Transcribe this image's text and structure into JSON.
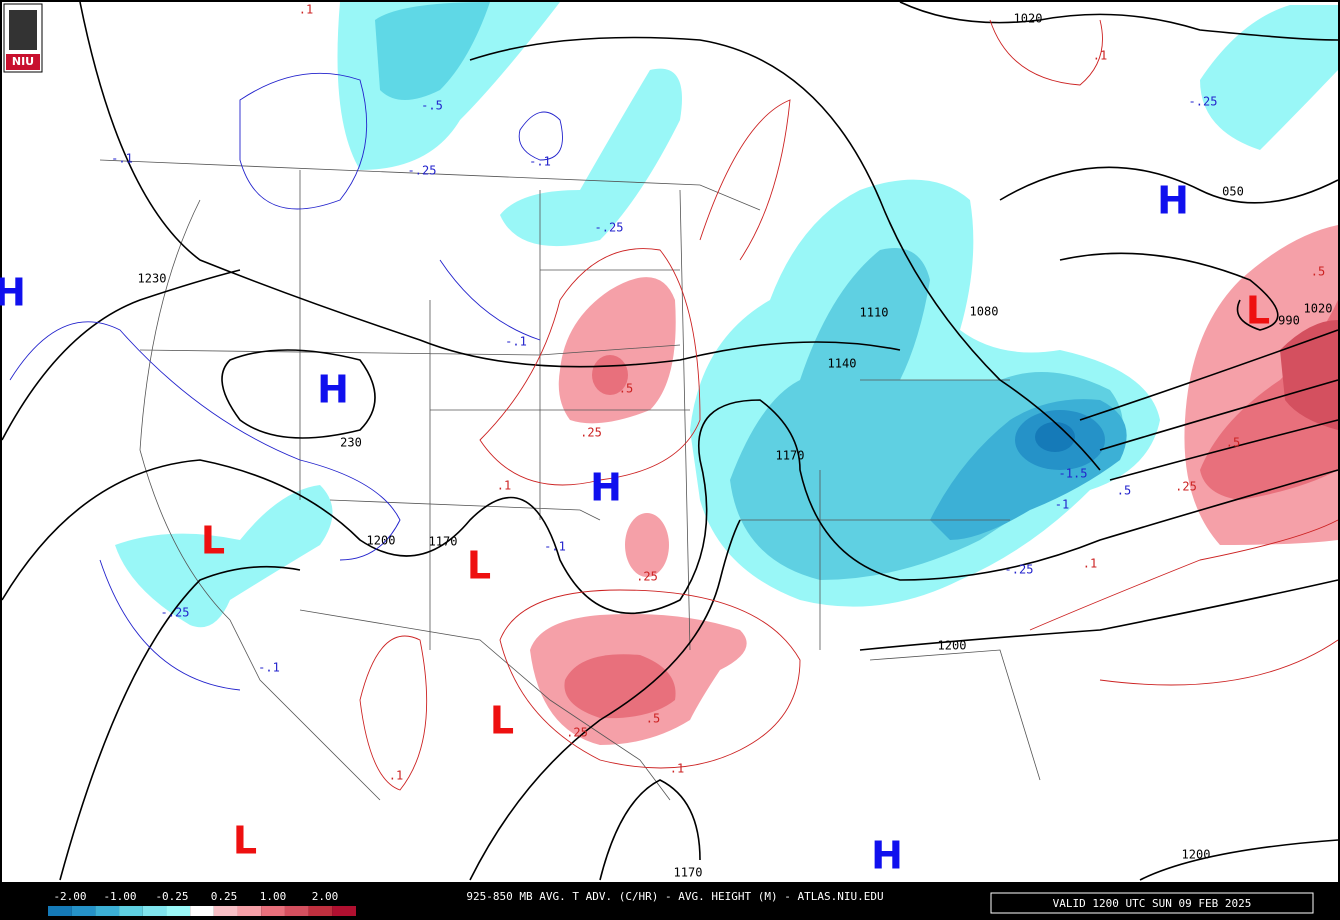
{
  "logo": "NIU",
  "title": "925-850 MB AVG. T ADV. (C/HR) - AVG. HEIGHT (M) - ATLAS.NIU.EDU",
  "valid_time": "VALID 1200 UTC SUN 09 FEB 2025",
  "legend": {
    "labels": [
      "-2.00",
      "-1.00",
      "-0.25",
      "0.25",
      "1.00",
      "2.00"
    ],
    "colors": [
      "#157ab8",
      "#2592c8",
      "#3cb0d6",
      "#5fd0e2",
      "#7fe4ee",
      "#99f7f7",
      "#ffffff",
      "#f8c0c6",
      "#f5a0a8",
      "#e8707c",
      "#d4505f",
      "#c0303f",
      "#b01030"
    ]
  },
  "centers": [
    {
      "label": "H",
      "color": "#1010ee"
    },
    {
      "label": "H",
      "color": "#1010ee"
    },
    {
      "label": "H",
      "color": "#1010ee"
    },
    {
      "label": "H",
      "color": "#1010ee"
    },
    {
      "label": "H",
      "color": "#1010ee"
    },
    {
      "label": "L",
      "color": "#ee1010"
    },
    {
      "label": "L",
      "color": "#ee1010"
    },
    {
      "label": "L",
      "color": "#ee1010"
    },
    {
      "label": "L",
      "color": "#ee1010"
    },
    {
      "label": "L",
      "color": "#ee1010"
    }
  ],
  "contour_labels": [
    {
      "text": ".1",
      "color": "#cc2222"
    },
    {
      "text": "1020",
      "color": "#000000"
    },
    {
      "text": ".1",
      "color": "#cc2222"
    },
    {
      "text": "-.5",
      "color": "#2222cc"
    },
    {
      "text": "-.1",
      "color": "#2222cc"
    },
    {
      "text": "-.25",
      "color": "#2222cc"
    },
    {
      "text": "-.1",
      "color": "#2222cc"
    },
    {
      "text": "-.25",
      "color": "#2222cc"
    },
    {
      "text": "050",
      "color": "#000000"
    },
    {
      "text": "-.25",
      "color": "#2222cc"
    },
    {
      "text": "1230",
      "color": "#000000"
    },
    {
      "text": "-.1",
      "color": "#2222cc"
    },
    {
      "text": "1110",
      "color": "#000000"
    },
    {
      "text": "1080",
      "color": "#000000"
    },
    {
      "text": "990",
      "color": "#000000"
    },
    {
      "text": "1020",
      "color": "#000000"
    },
    {
      "text": ".5",
      "color": "#cc2222"
    },
    {
      "text": ".5",
      "color": "#cc2222"
    },
    {
      "text": "1140",
      "color": "#000000"
    },
    {
      "text": ".25",
      "color": "#cc2222"
    },
    {
      "text": "230",
      "color": "#000000"
    },
    {
      "text": "1170",
      "color": "#000000"
    },
    {
      "text": ".5",
      "color": "#cc2222"
    },
    {
      "text": ".1",
      "color": "#cc2222"
    },
    {
      "text": "-1.5",
      "color": "#2222cc"
    },
    {
      "text": ".5",
      "color": "#2222cc"
    },
    {
      "text": "-1",
      "color": "#2222cc"
    },
    {
      "text": ".25",
      "color": "#cc2222"
    },
    {
      "text": "1200",
      "color": "#000000"
    },
    {
      "text": "1170",
      "color": "#000000"
    },
    {
      "text": "-.1",
      "color": "#2222cc"
    },
    {
      "text": ".25",
      "color": "#cc2222"
    },
    {
      "text": ".1",
      "color": "#cc2222"
    },
    {
      "text": "-.25",
      "color": "#2222cc"
    },
    {
      "text": "-.25",
      "color": "#2222cc"
    },
    {
      "text": "1200",
      "color": "#000000"
    },
    {
      "text": "-.1",
      "color": "#2222cc"
    },
    {
      "text": ".5",
      "color": "#cc2222"
    },
    {
      "text": ".25",
      "color": "#cc2222"
    },
    {
      "text": ".1",
      "color": "#cc2222"
    },
    {
      "text": ".1",
      "color": "#cc2222"
    },
    {
      "text": "1170",
      "color": "#000000"
    },
    {
      "text": "1200",
      "color": "#000000"
    }
  ]
}
